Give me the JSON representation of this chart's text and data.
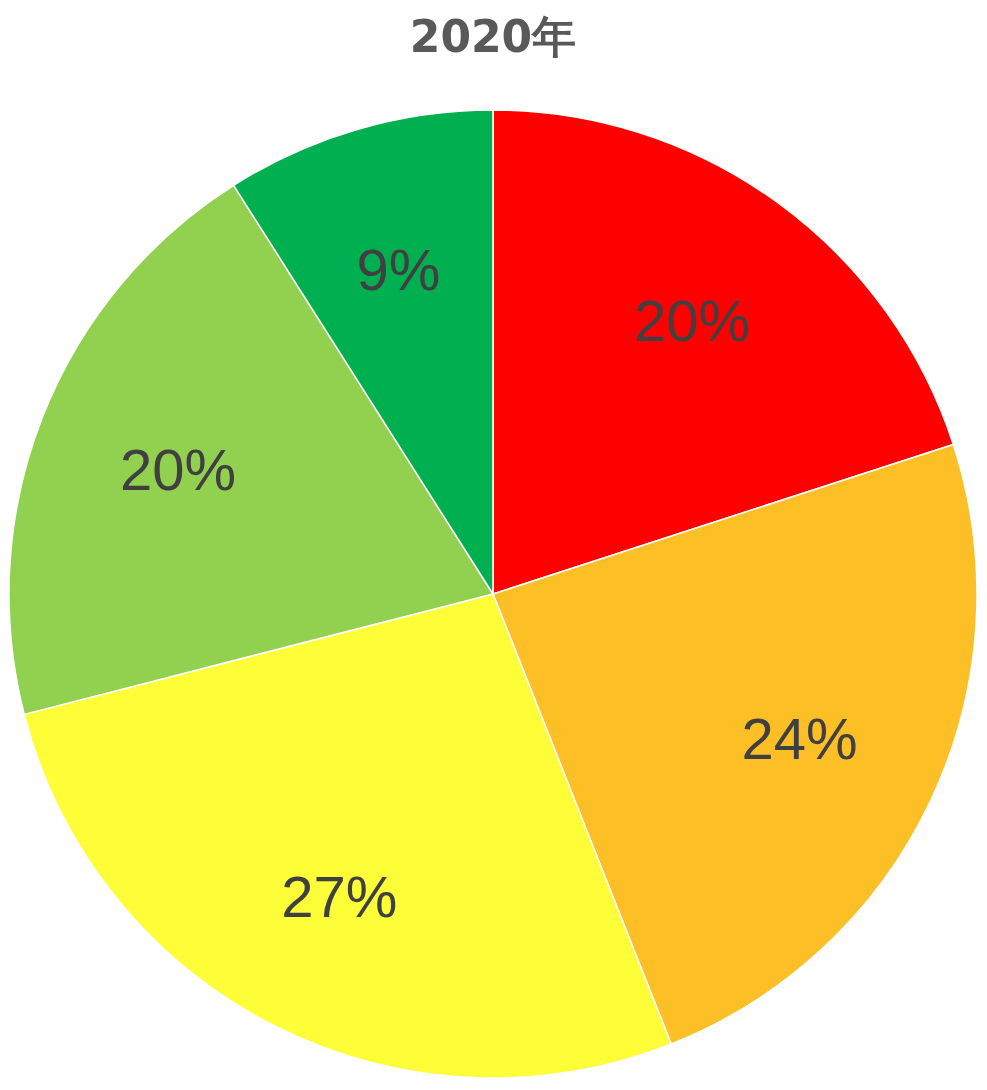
{
  "chart_data": {
    "type": "pie",
    "title": "2020年",
    "categories": [
      null,
      null,
      null,
      null,
      null
    ],
    "values": [
      20,
      24,
      27,
      20,
      9
    ],
    "colors": [
      "#ff0000",
      "#fdbf26",
      "#fdfd38",
      "#92d050",
      "#00b050"
    ],
    "value_labels": [
      "20%",
      "24%",
      "27%",
      "20%",
      "9%"
    ]
  }
}
